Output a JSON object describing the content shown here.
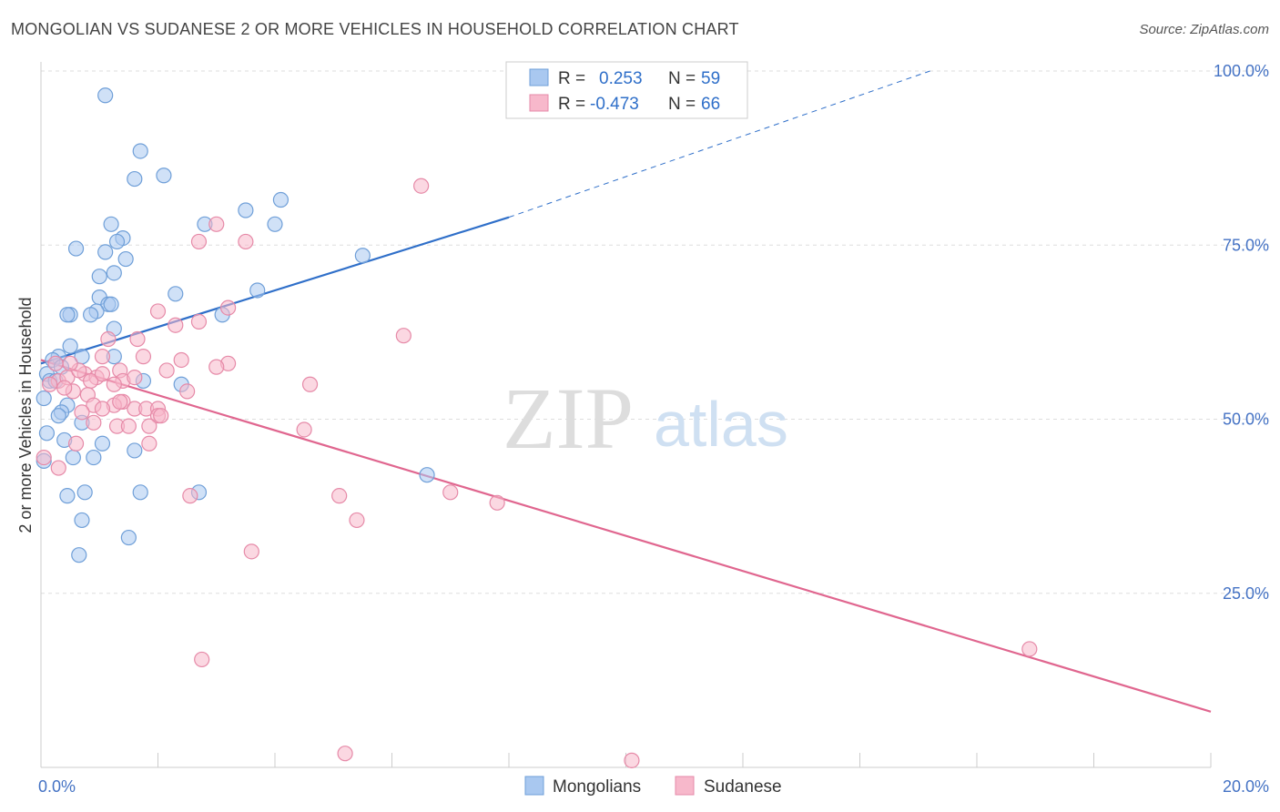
{
  "title": "MONGOLIAN VS SUDANESE 2 OR MORE VEHICLES IN HOUSEHOLD CORRELATION CHART",
  "source": "Source: ZipAtlas.com",
  "watermark": {
    "zip": "ZIP",
    "atlas": "atlas"
  },
  "colors": {
    "mongolians_fill": "#a9c8f0",
    "mongolians_stroke": "#6f9fd8",
    "mongolians_line": "#2f6fc9",
    "sudanese_fill": "#f7b8cb",
    "sudanese_stroke": "#e68aa8",
    "sudanese_line": "#e0668f",
    "value_blue": "#2f6fc9",
    "grid": "#dddddd"
  },
  "legend_top": {
    "rows": [
      {
        "r_label": "R = ",
        "r_value": "0.253",
        "n_label": "N = ",
        "n_value": "59"
      },
      {
        "r_label": "R = ",
        "r_value": "-0.473",
        "n_label": "N = ",
        "n_value": "66"
      }
    ]
  },
  "legend_bottom": {
    "items": [
      "Mongolians",
      "Sudanese"
    ]
  },
  "chart_data": {
    "type": "scatter",
    "title": "MONGOLIAN VS SUDANESE 2 OR MORE VEHICLES IN HOUSEHOLD CORRELATION CHART",
    "xlabel": "",
    "ylabel": "2 or more Vehicles in Household",
    "xlim": [
      0,
      20
    ],
    "ylim": [
      0,
      100
    ],
    "x_ticks": [
      "0.0%",
      "20.0%"
    ],
    "y_ticks": [
      "100.0%",
      "75.0%",
      "50.0%",
      "25.0%"
    ],
    "y_tick_values": [
      100,
      75,
      50,
      25
    ],
    "x_minor_ticks": [
      0,
      2,
      4,
      6,
      8,
      10,
      12,
      14,
      16,
      18,
      20
    ],
    "grid": true,
    "legend_position": "top-center",
    "series": [
      {
        "name": "Mongolians",
        "r": 0.253,
        "n": 59,
        "trend": {
          "x0": 0,
          "y0": 58,
          "x1": 8,
          "y1": 79,
          "dashed_to_x": 15.2,
          "dashed_to_y": 100
        },
        "points": [
          [
            1.1,
            96.5
          ],
          [
            1.7,
            88.5
          ],
          [
            1.6,
            84.5
          ],
          [
            2.1,
            85
          ],
          [
            2.8,
            78
          ],
          [
            3.5,
            80
          ],
          [
            4.0,
            78
          ],
          [
            4.1,
            81.5
          ],
          [
            1.2,
            78
          ],
          [
            1.4,
            76
          ],
          [
            0.6,
            74.5
          ],
          [
            1.1,
            74
          ],
          [
            1.3,
            75.5
          ],
          [
            1.45,
            73
          ],
          [
            1.25,
            71
          ],
          [
            1.0,
            70.5
          ],
          [
            5.5,
            73.5
          ],
          [
            1.0,
            67.5
          ],
          [
            1.15,
            66.5
          ],
          [
            0.95,
            65.5
          ],
          [
            1.2,
            66.5
          ],
          [
            0.5,
            65
          ],
          [
            0.45,
            65
          ],
          [
            0.85,
            65
          ],
          [
            3.7,
            68.5
          ],
          [
            3.1,
            65
          ],
          [
            2.3,
            68
          ],
          [
            1.25,
            63
          ],
          [
            0.5,
            60.5
          ],
          [
            0.3,
            59
          ],
          [
            0.7,
            59
          ],
          [
            1.25,
            59
          ],
          [
            0.1,
            56.5
          ],
          [
            0.15,
            55.5
          ],
          [
            0.25,
            55.5
          ],
          [
            1.75,
            55.5
          ],
          [
            2.4,
            55
          ],
          [
            0.45,
            52
          ],
          [
            0.35,
            51
          ],
          [
            0.3,
            50.5
          ],
          [
            0.7,
            49.5
          ],
          [
            0.1,
            48
          ],
          [
            0.4,
            47
          ],
          [
            1.05,
            46.5
          ],
          [
            1.6,
            45.5
          ],
          [
            0.55,
            44.5
          ],
          [
            0.9,
            44.5
          ],
          [
            0.05,
            44
          ],
          [
            0.45,
            39
          ],
          [
            0.75,
            39.5
          ],
          [
            1.7,
            39.5
          ],
          [
            2.7,
            39.5
          ],
          [
            0.7,
            35.5
          ],
          [
            1.5,
            33
          ],
          [
            0.65,
            30.5
          ],
          [
            6.6,
            42
          ],
          [
            0.05,
            53
          ],
          [
            0.2,
            58.5
          ],
          [
            0.35,
            57.5
          ]
        ]
      },
      {
        "name": "Sudanese",
        "r": -0.473,
        "n": 66,
        "trend": {
          "x0": 0,
          "y0": 58.5,
          "x1": 20,
          "y1": 8
        },
        "points": [
          [
            6.5,
            83.5
          ],
          [
            3.0,
            78
          ],
          [
            2.7,
            75.5
          ],
          [
            3.5,
            75.5
          ],
          [
            3.2,
            66
          ],
          [
            2.0,
            65.5
          ],
          [
            2.3,
            63.5
          ],
          [
            2.7,
            64
          ],
          [
            6.2,
            62
          ],
          [
            1.15,
            61.5
          ],
          [
            1.65,
            61.5
          ],
          [
            1.05,
            59
          ],
          [
            1.75,
            59
          ],
          [
            2.4,
            58.5
          ],
          [
            3.2,
            58
          ],
          [
            3.0,
            57.5
          ],
          [
            2.15,
            57
          ],
          [
            1.35,
            57
          ],
          [
            0.75,
            56.5
          ],
          [
            0.95,
            56
          ],
          [
            0.85,
            55.5
          ],
          [
            1.4,
            55.5
          ],
          [
            1.25,
            55
          ],
          [
            4.6,
            55
          ],
          [
            0.3,
            55.5
          ],
          [
            0.55,
            54
          ],
          [
            0.8,
            53.5
          ],
          [
            2.5,
            54
          ],
          [
            1.4,
            52.5
          ],
          [
            1.25,
            52
          ],
          [
            0.9,
            52
          ],
          [
            1.6,
            51.5
          ],
          [
            1.8,
            51.5
          ],
          [
            2.0,
            51.5
          ],
          [
            2.0,
            50.5
          ],
          [
            2.05,
            50.5
          ],
          [
            0.9,
            49.5
          ],
          [
            1.3,
            49
          ],
          [
            1.5,
            49
          ],
          [
            1.85,
            49
          ],
          [
            4.5,
            48.5
          ],
          [
            0.6,
            46.5
          ],
          [
            1.85,
            46.5
          ],
          [
            0.05,
            44.5
          ],
          [
            0.3,
            43
          ],
          [
            2.55,
            39
          ],
          [
            5.1,
            39
          ],
          [
            7.0,
            39.5
          ],
          [
            7.8,
            38
          ],
          [
            5.4,
            35.5
          ],
          [
            3.6,
            31
          ],
          [
            2.75,
            15.5
          ],
          [
            5.2,
            2
          ],
          [
            10.1,
            1
          ],
          [
            16.9,
            17
          ],
          [
            0.45,
            56
          ],
          [
            0.15,
            55
          ],
          [
            0.25,
            58
          ],
          [
            0.65,
            57
          ],
          [
            0.4,
            54.5
          ],
          [
            1.05,
            56.5
          ],
          [
            1.6,
            56
          ],
          [
            0.7,
            51
          ],
          [
            1.05,
            51.5
          ],
          [
            1.35,
            52.5
          ],
          [
            0.5,
            58
          ]
        ]
      }
    ]
  }
}
